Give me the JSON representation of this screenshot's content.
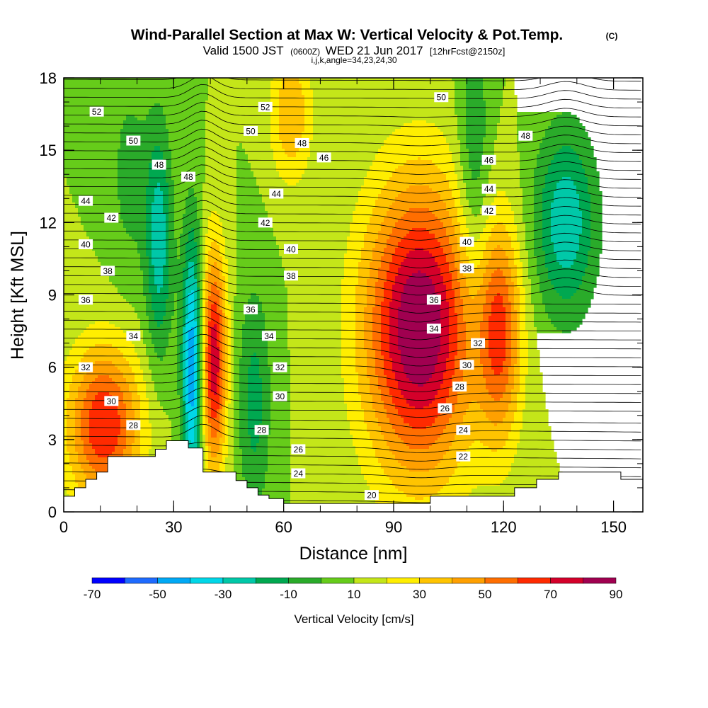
{
  "chart_data": {
    "type": "heatmap",
    "title": "Wind-Parallel Section at Max W: Vertical Velocity & Pot.Temp.",
    "title_mark": "(C)",
    "subtitle": {
      "valid": "Valid 1500 JST",
      "utc": "(0600Z)",
      "date": "WED 21 Jun 2017",
      "fcst": "[12hrFcst@2150z]"
    },
    "section_info": "i,j,k,angle=34,23,24,30",
    "xlabel": "Distance [nm]",
    "ylabel": "Height [Kft MSL]",
    "xlim": [
      0,
      158
    ],
    "ylim": [
      0,
      18
    ],
    "x_ticks": [
      0,
      30,
      60,
      90,
      120,
      150
    ],
    "y_ticks": [
      0,
      3,
      6,
      9,
      12,
      15,
      18
    ],
    "colorbar": {
      "label": "Vertical Velocity [cm/s]",
      "tick_labels": [
        -70,
        -50,
        -30,
        -10,
        10,
        30,
        50,
        70,
        90
      ],
      "levels": [
        -70,
        -60,
        -50,
        -40,
        -30,
        -20,
        -10,
        0,
        10,
        20,
        30,
        40,
        50,
        60,
        70,
        80,
        90
      ],
      "colors": [
        "#0000ff",
        "#1e6bff",
        "#00a9f5",
        "#00d7e8",
        "#00c8a8",
        "#00a850",
        "#2aab2a",
        "#66cc1a",
        "#c4e619",
        "#ffee00",
        "#ffc400",
        "#ffa000",
        "#ff6e00",
        "#ff2a00",
        "#d4002a",
        "#a00050"
      ]
    },
    "vertical_velocity_cells": [
      {
        "x": 11,
        "y": 3.6,
        "w": 60,
        "sx": 7,
        "sy": 2.3
      },
      {
        "x": 26,
        "y": 11.2,
        "w": -36,
        "sx": 2.6,
        "sy": 3.4
      },
      {
        "x": 35,
        "y": 6.0,
        "w": -58,
        "sx": 2.0,
        "sy": 4.0
      },
      {
        "x": 41,
        "y": 6.3,
        "w": 68,
        "sx": 2.4,
        "sy": 3.2
      },
      {
        "x": 52,
        "y": 4.6,
        "w": -24,
        "sx": 3.2,
        "sy": 3.4
      },
      {
        "x": 97,
        "y": 7.6,
        "w": 82,
        "sx": 10.5,
        "sy": 4.2
      },
      {
        "x": 112,
        "y": 14.2,
        "w": -22,
        "sx": 3.2,
        "sy": 4.0
      },
      {
        "x": 119,
        "y": 7.4,
        "w": 48,
        "sx": 4.2,
        "sy": 3.2
      },
      {
        "x": 137,
        "y": 12.0,
        "w": -38,
        "sx": 6.0,
        "sy": 2.8
      },
      {
        "x": 62,
        "y": 16.5,
        "w": 30,
        "sx": 4.0,
        "sy": 2.0
      },
      {
        "x": 18,
        "y": 14.0,
        "w": -14,
        "sx": 4.0,
        "sy": 3.0
      }
    ],
    "potential_temperature_labels": [
      {
        "x": 9,
        "y": 16.6,
        "t": "52"
      },
      {
        "x": 19,
        "y": 15.4,
        "t": "50"
      },
      {
        "x": 26,
        "y": 14.4,
        "t": "48"
      },
      {
        "x": 34,
        "y": 13.9,
        "t": "48"
      },
      {
        "x": 6,
        "y": 12.9,
        "t": "44"
      },
      {
        "x": 13,
        "y": 12.2,
        "t": "42"
      },
      {
        "x": 6,
        "y": 11.1,
        "t": "40"
      },
      {
        "x": 12,
        "y": 10.0,
        "t": "38"
      },
      {
        "x": 6,
        "y": 8.8,
        "t": "36"
      },
      {
        "x": 19,
        "y": 7.3,
        "t": "34"
      },
      {
        "x": 6,
        "y": 6.0,
        "t": "32"
      },
      {
        "x": 13,
        "y": 4.6,
        "t": "30"
      },
      {
        "x": 19,
        "y": 3.6,
        "t": "28"
      },
      {
        "x": 55,
        "y": 16.8,
        "t": "52"
      },
      {
        "x": 51,
        "y": 15.8,
        "t": "50"
      },
      {
        "x": 65,
        "y": 15.3,
        "t": "48"
      },
      {
        "x": 71,
        "y": 14.7,
        "t": "46"
      },
      {
        "x": 58,
        "y": 13.2,
        "t": "44"
      },
      {
        "x": 55,
        "y": 12.0,
        "t": "42"
      },
      {
        "x": 62,
        "y": 10.9,
        "t": "40"
      },
      {
        "x": 62,
        "y": 9.8,
        "t": "38"
      },
      {
        "x": 51,
        "y": 8.4,
        "t": "36"
      },
      {
        "x": 56,
        "y": 7.3,
        "t": "34"
      },
      {
        "x": 59,
        "y": 6.0,
        "t": "32"
      },
      {
        "x": 59,
        "y": 4.8,
        "t": "30"
      },
      {
        "x": 54,
        "y": 3.4,
        "t": "28"
      },
      {
        "x": 64,
        "y": 2.6,
        "t": "26"
      },
      {
        "x": 64,
        "y": 1.6,
        "t": "24"
      },
      {
        "x": 84,
        "y": 0.7,
        "t": "20"
      },
      {
        "x": 103,
        "y": 17.2,
        "t": "50"
      },
      {
        "x": 126,
        "y": 15.6,
        "t": "48"
      },
      {
        "x": 116,
        "y": 14.6,
        "t": "46"
      },
      {
        "x": 116,
        "y": 13.4,
        "t": "44"
      },
      {
        "x": 116,
        "y": 12.5,
        "t": "42"
      },
      {
        "x": 110,
        "y": 11.2,
        "t": "40"
      },
      {
        "x": 110,
        "y": 10.1,
        "t": "38"
      },
      {
        "x": 101,
        "y": 8.8,
        "t": "36"
      },
      {
        "x": 101,
        "y": 7.6,
        "t": "34"
      },
      {
        "x": 113,
        "y": 7.0,
        "t": "32"
      },
      {
        "x": 110,
        "y": 6.1,
        "t": "30"
      },
      {
        "x": 108,
        "y": 5.2,
        "t": "28"
      },
      {
        "x": 104,
        "y": 4.3,
        "t": "26"
      },
      {
        "x": 109,
        "y": 3.4,
        "t": "24"
      },
      {
        "x": 109,
        "y": 2.3,
        "t": "22"
      }
    ],
    "terrain_kft": [
      [
        0,
        0.65
      ],
      [
        3,
        0.65
      ],
      [
        3,
        1.0
      ],
      [
        6,
        1.0
      ],
      [
        6,
        1.35
      ],
      [
        9,
        1.35
      ],
      [
        9,
        1.65
      ],
      [
        12,
        1.65
      ],
      [
        12,
        2.3
      ],
      [
        25,
        2.3
      ],
      [
        25,
        2.6
      ],
      [
        28,
        2.6
      ],
      [
        28,
        2.95
      ],
      [
        34,
        2.95
      ],
      [
        34,
        2.65
      ],
      [
        38,
        2.65
      ],
      [
        38,
        1.65
      ],
      [
        47,
        1.65
      ],
      [
        47,
        1.3
      ],
      [
        50,
        1.3
      ],
      [
        50,
        1.0
      ],
      [
        53,
        1.0
      ],
      [
        53,
        0.7
      ],
      [
        56,
        0.7
      ],
      [
        56,
        0.55
      ],
      [
        60,
        0.55
      ],
      [
        60,
        0.35
      ],
      [
        100,
        0.35
      ],
      [
        100,
        0.65
      ],
      [
        123,
        0.65
      ],
      [
        123,
        1.0
      ],
      [
        129,
        1.0
      ],
      [
        129,
        1.35
      ],
      [
        135,
        1.35
      ],
      [
        135,
        1.65
      ],
      [
        152,
        1.65
      ],
      [
        152,
        1.35
      ],
      [
        158,
        1.35
      ]
    ]
  }
}
